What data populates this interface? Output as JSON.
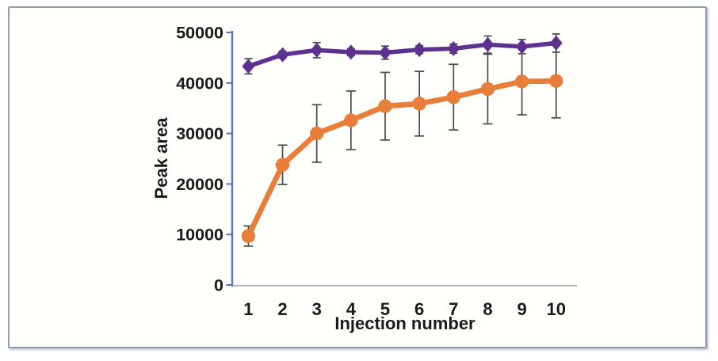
{
  "chart_data": {
    "type": "line",
    "title": "",
    "xlabel": "Injection number",
    "ylabel": "Peak area",
    "x": [
      1,
      2,
      3,
      4,
      5,
      6,
      7,
      8,
      9,
      10
    ],
    "ylim": [
      0,
      50000
    ],
    "yticks": [
      0,
      10000,
      20000,
      30000,
      40000,
      50000
    ],
    "grid": false,
    "legend": "none",
    "series": [
      {
        "name": "purple-diamond-series",
        "marker": "diamond",
        "color": "#5E3190",
        "values": [
          43300,
          45600,
          46500,
          46100,
          46000,
          46600,
          46800,
          47600,
          47200,
          47900
        ],
        "errors": [
          1500,
          700,
          1500,
          700,
          1300,
          800,
          900,
          1700,
          1400,
          1800
        ]
      },
      {
        "name": "orange-circle-series",
        "marker": "circle",
        "color": "#E87E39",
        "values": [
          9700,
          23800,
          30000,
          32600,
          35400,
          35900,
          37200,
          38800,
          40300,
          40400
        ],
        "errors": [
          2000,
          3900,
          5700,
          5800,
          6700,
          6400,
          6500,
          6900,
          6600,
          7300
        ]
      }
    ],
    "colors": {
      "axis_line": "#5577B5",
      "baseline": "#B6B6B6",
      "error_bar": "#4A4A4A",
      "tick_text": "#1A1A1A"
    }
  }
}
